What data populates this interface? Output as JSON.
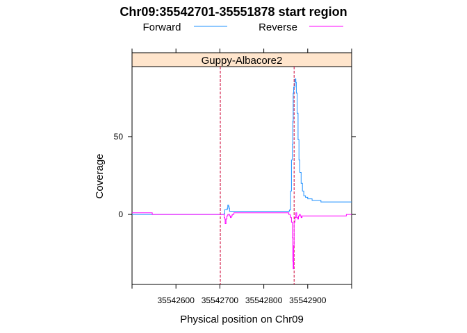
{
  "chart_data": {
    "type": "line",
    "title": "Chr09:35542701-35551878 start region",
    "panel_label": "Guppy-Albacore2",
    "xlabel": "Physical position on Chr09",
    "ylabel": "Coverage",
    "xlim": [
      35542500,
      35543000
    ],
    "ylim": [
      -45,
      95
    ],
    "xticks": [
      35542600,
      35542700,
      35542800,
      35542900
    ],
    "yticks": [
      0,
      50
    ],
    "legend_position": "top",
    "grid": false,
    "vlines": [
      35542701,
      35542869
    ],
    "vline_color": "#CC0033",
    "series": [
      {
        "name": "Forward",
        "color": "#1E90FF",
        "x": [
          35542500,
          35542545,
          35542546,
          35542590,
          35542700,
          35542710,
          35542711,
          35542717,
          35542718,
          35542719,
          35542720,
          35542721,
          35542722,
          35542723,
          35542726,
          35542727,
          35542735,
          35542745,
          35542750,
          35542760,
          35542800,
          35542830,
          35542850,
          35542858,
          35542859,
          35542861,
          35542863,
          35542865,
          35542866,
          35542867,
          35542868,
          35542869,
          35542871,
          35542873,
          35542874,
          35542876,
          35542878,
          35542880,
          35542882,
          35542885,
          35542888,
          35542891,
          35542895,
          35542900,
          35542910,
          35542920,
          35542930,
          35542950,
          35542970,
          35543000
        ],
        "y": [
          0,
          0,
          0,
          0,
          0,
          0.5,
          3,
          4,
          6,
          6,
          5,
          4,
          2,
          2,
          2,
          2,
          2,
          2,
          2,
          2,
          2,
          2,
          2,
          2.5,
          3,
          15,
          35,
          45,
          60,
          78,
          82,
          82,
          87,
          85,
          78,
          65,
          48,
          35,
          27,
          20,
          15,
          12,
          11,
          10,
          9,
          9,
          8,
          8,
          8,
          8
        ]
      },
      {
        "name": "Reverse",
        "color": "#FF00FF",
        "x": [
          35542500,
          35542544,
          35542546,
          35542590,
          35542700,
          35542705,
          35542710,
          35542711,
          35542712,
          35542714,
          35542716,
          35542718,
          35542720,
          35542722,
          35542724,
          35542726,
          35542728,
          35542730,
          35542732,
          35542740,
          35542750,
          35542760,
          35542800,
          35542830,
          35542855,
          35542857,
          35542860,
          35542861,
          35542863,
          35542865,
          35542866,
          35542867,
          35542868,
          35542869,
          35542871,
          35542873,
          35542875,
          35542877,
          35542879,
          35542881,
          35542883,
          35542885,
          35542887,
          35542890,
          35542895,
          35542900,
          35542950,
          35542980,
          35542988,
          35543000
        ],
        "y": [
          1,
          1,
          0,
          0,
          0,
          0,
          -2,
          -3,
          -6,
          -3,
          -1,
          0,
          0,
          -1,
          -2,
          -1,
          0,
          0,
          1,
          1,
          1,
          1,
          1,
          1,
          1,
          0,
          -1,
          -2,
          -5,
          -15,
          -30,
          -35,
          -20,
          -5,
          -2,
          1,
          -2,
          -3,
          -1,
          0,
          -1,
          -2,
          -1,
          -1,
          -1,
          -1,
          -1,
          -1,
          0,
          0
        ]
      }
    ]
  }
}
